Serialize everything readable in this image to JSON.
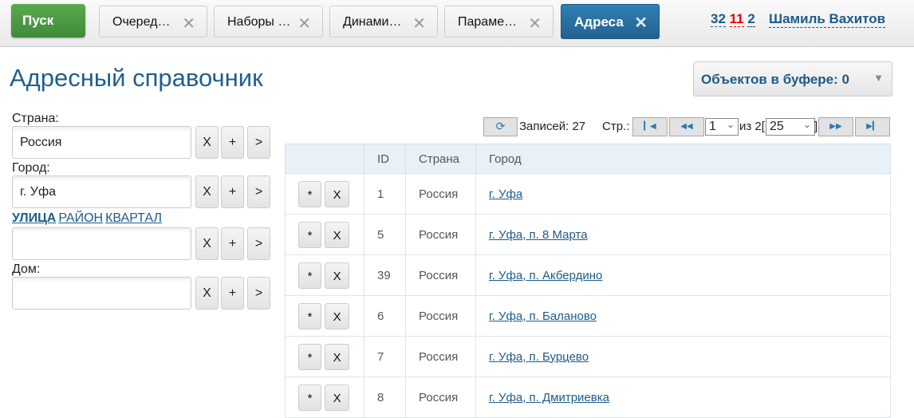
{
  "topbar": {
    "start": "Пуск",
    "tabs": [
      {
        "label": "Очеред…"
      },
      {
        "label": "Наборы …"
      },
      {
        "label": "Динами…"
      },
      {
        "label": "Параме…"
      },
      {
        "label": "Адреса",
        "active": true
      }
    ],
    "counters": [
      "32",
      "11",
      "2"
    ],
    "user": "Шамиль Вахитов"
  },
  "page": {
    "title": "Адресный справочник",
    "buffer": "Объектов в буфере: 0"
  },
  "filters": {
    "country_label": "Страна:",
    "country_value": "Россия",
    "city_label": "Город:",
    "city_value": "г. Уфа",
    "street_modes": [
      "УЛИЦА",
      "РАЙОН",
      "КВАРТАЛ"
    ],
    "street_value": "",
    "house_label": "Дом:",
    "house_value": "",
    "btn_clear": "X",
    "btn_add": "+",
    "btn_go": ">"
  },
  "pager": {
    "records": "Записей: 27",
    "page_label": "Стр.:",
    "page": "1",
    "of": "из 2[",
    "page_size": "25",
    "close": "]"
  },
  "table": {
    "headers": [
      "",
      "ID",
      "Страна",
      "Город"
    ],
    "row_btn_star": "*",
    "row_btn_del": "X",
    "rows": [
      {
        "id": "1",
        "country": "Россия",
        "city": "г. Уфа"
      },
      {
        "id": "5",
        "country": "Россия",
        "city": "г. Уфа, п. 8 Марта"
      },
      {
        "id": "39",
        "country": "Россия",
        "city": "г. Уфа, п. Акбердино"
      },
      {
        "id": "6",
        "country": "Россия",
        "city": "г. Уфа, п. Баланово"
      },
      {
        "id": "7",
        "country": "Россия",
        "city": "г. Уфа, п. Бурцево"
      },
      {
        "id": "8",
        "country": "Россия",
        "city": "г. Уфа, п. Дмитриевка"
      }
    ]
  }
}
